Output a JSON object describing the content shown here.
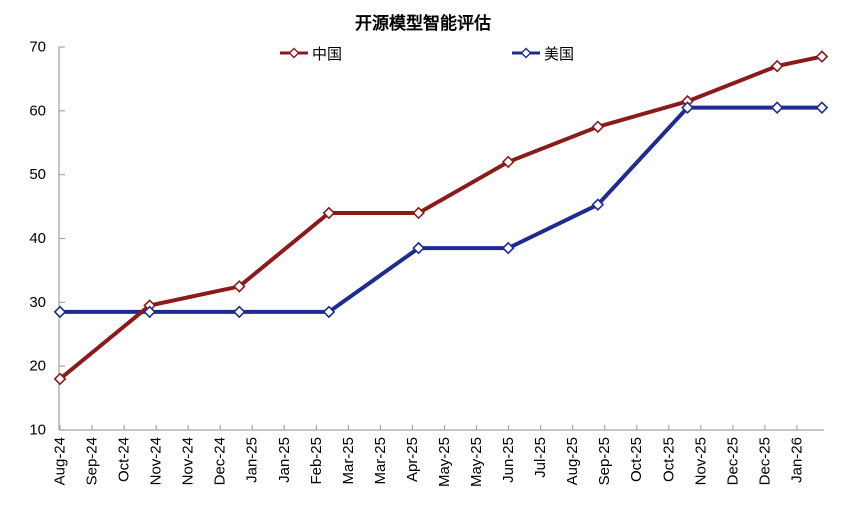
{
  "chart_data": {
    "type": "line",
    "title": "开源模型智能评估",
    "legend_position": "top",
    "grid": false,
    "marker_style": "open-diamond",
    "axis_color": "#A6A6A6",
    "text_color": "#000000",
    "y_axis": {
      "min": 10,
      "max": 70,
      "ticks": [
        10,
        20,
        30,
        40,
        50,
        60,
        70
      ]
    },
    "x_axis": {
      "tick_labels": [
        "Aug-24",
        "Sep-24",
        "Oct-24",
        "Nov-24",
        "Nov-24",
        "Dec-24",
        "Jan-25",
        "Jan-25",
        "Feb-25",
        "Mar-25",
        "Mar-25",
        "Apr-25",
        "May-25",
        "May-25",
        "Jun-25",
        "Jul-25",
        "Aug-25",
        "Sep-25",
        "Oct-25",
        "Oct-25",
        "Nov-25",
        "Dec-25",
        "Dec-25",
        "Jan-26"
      ],
      "label_rotation_deg": -90,
      "span_months": 17
    },
    "series": [
      {
        "name": "中国",
        "color": "#8B1B1B",
        "points": [
          {
            "date": "Aug-24",
            "month_index": 0,
            "value": 18
          },
          {
            "date": "Oct-24",
            "month_index": 2,
            "value": 29.5
          },
          {
            "date": "Dec-24",
            "month_index": 4,
            "value": 32.5
          },
          {
            "date": "Feb-25",
            "month_index": 6,
            "value": 44
          },
          {
            "date": "Apr-25",
            "month_index": 8,
            "value": 44
          },
          {
            "date": "Jun-25",
            "month_index": 10,
            "value": 52
          },
          {
            "date": "Aug-25",
            "month_index": 12,
            "value": 57.5
          },
          {
            "date": "Oct-25",
            "month_index": 14,
            "value": 61.5
          },
          {
            "date": "Dec-25",
            "month_index": 16,
            "value": 67
          },
          {
            "date": "Jan-26",
            "month_index": 17,
            "value": 68.5
          }
        ]
      },
      {
        "name": "美国",
        "color": "#1F2C8F",
        "points": [
          {
            "date": "Aug-24",
            "month_index": 0,
            "value": 28.5
          },
          {
            "date": "Oct-24",
            "month_index": 2,
            "value": 28.5
          },
          {
            "date": "Dec-24",
            "month_index": 4,
            "value": 28.5
          },
          {
            "date": "Feb-25",
            "month_index": 6,
            "value": 28.5
          },
          {
            "date": "Apr-25",
            "month_index": 8,
            "value": 38.5
          },
          {
            "date": "Jun-25",
            "month_index": 10,
            "value": 38.5
          },
          {
            "date": "Aug-25",
            "month_index": 12,
            "value": 45.3
          },
          {
            "date": "Oct-25",
            "month_index": 14,
            "value": 60.5
          },
          {
            "date": "Dec-25",
            "month_index": 16,
            "value": 60.5
          },
          {
            "date": "Jan-26",
            "month_index": 17,
            "value": 60.5
          }
        ]
      }
    ]
  }
}
